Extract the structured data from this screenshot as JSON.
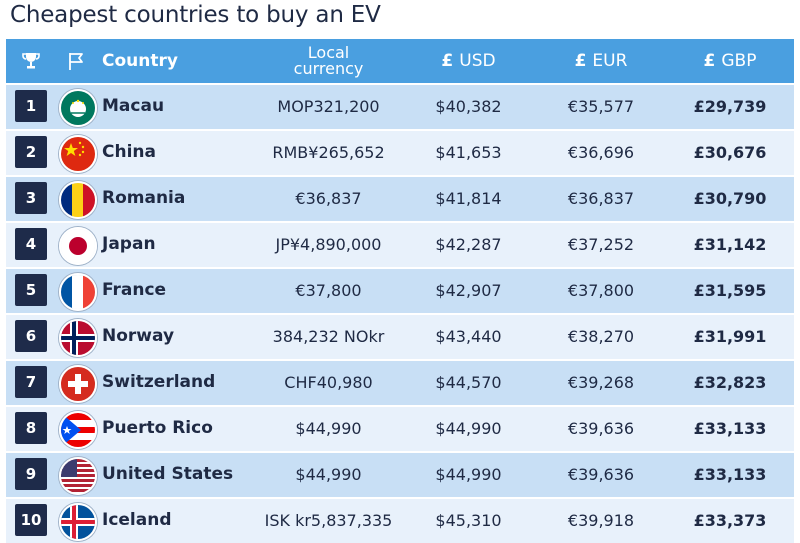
{
  "title": "Cheapest countries to buy an EV",
  "header": {
    "country": "Country",
    "local_line1": "Local",
    "local_line2": "currency",
    "usd_symbol": "£",
    "usd": "USD",
    "eur_symbol": "£",
    "eur": "EUR",
    "gbp_symbol": "£",
    "gbp": "GBP"
  },
  "chart_data": {
    "type": "table",
    "title": "Cheapest countries to buy an EV",
    "columns": [
      "Rank",
      "Country",
      "Local currency",
      "USD",
      "EUR",
      "GBP"
    ],
    "rows": [
      {
        "rank": "1",
        "country": "Macau",
        "local": "MOP321,200",
        "usd": "$40,382",
        "eur": "€35,577",
        "gbp": "£29,739",
        "flag": "macau-flag-icon"
      },
      {
        "rank": "2",
        "country": "China",
        "local": "RMB¥265,652",
        "usd": "$41,653",
        "eur": "€36,696",
        "gbp": "£30,676",
        "flag": "china-flag-icon"
      },
      {
        "rank": "3",
        "country": "Romania",
        "local": "€36,837",
        "usd": "$41,814",
        "eur": "€36,837",
        "gbp": "£30,790",
        "flag": "romania-flag-icon"
      },
      {
        "rank": "4",
        "country": "Japan",
        "local": "JP¥4,890,000",
        "usd": "$42,287",
        "eur": "€37,252",
        "gbp": "£31,142",
        "flag": "japan-flag-icon"
      },
      {
        "rank": "5",
        "country": "France",
        "local": "€37,800",
        "usd": "$42,907",
        "eur": "€37,800",
        "gbp": "£31,595",
        "flag": "france-flag-icon"
      },
      {
        "rank": "6",
        "country": "Norway",
        "local": "384,232 NOkr",
        "usd": "$43,440",
        "eur": "€38,270",
        "gbp": "£31,991",
        "flag": "norway-flag-icon"
      },
      {
        "rank": "7",
        "country": "Switzerland",
        "local": "CHF40,980",
        "usd": "$44,570",
        "eur": "€39,268",
        "gbp": "£32,823",
        "flag": "switzerland-flag-icon"
      },
      {
        "rank": "8",
        "country": "Puerto Rico",
        "local": "$44,990",
        "usd": "$44,990",
        "eur": "€39,636",
        "gbp": "£33,133",
        "flag": "puerto-rico-flag-icon"
      },
      {
        "rank": "9",
        "country": "United States",
        "local": "$44,990",
        "usd": "$44,990",
        "eur": "€39,636",
        "gbp": "£33,133",
        "flag": "united-states-flag-icon"
      },
      {
        "rank": "10",
        "country": "Iceland",
        "local": "ISK kr5,837,335",
        "usd": "$45,310",
        "eur": "€39,918",
        "gbp": "£33,373",
        "flag": "iceland-flag-icon"
      }
    ]
  },
  "colors": {
    "header_bg": "#4a9fe0",
    "row_odd": "#c8dff5",
    "row_even": "#e8f1fb",
    "rank_bg": "#1e2b4a",
    "text": "#1f2a44"
  }
}
